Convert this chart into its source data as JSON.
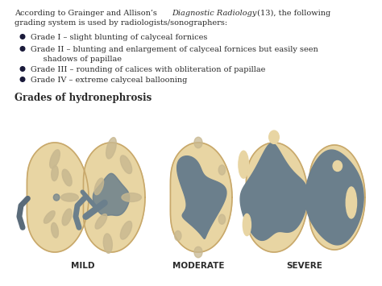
{
  "bg_color": "#ffffff",
  "text_color": "#2a2a2a",
  "kidney_fill": "#e8d5a3",
  "kidney_stroke": "#c8a86b",
  "dark_fill": "#6b7f8c",
  "light_calyces": "#c8b890",
  "hilum_color": "#5a6b7a",
  "title_text": "Grades of hydronephrosis",
  "header_text1": "According to Grainger and Allison’s ",
  "header_italic": "Diagnostic Radiology",
  "header_text2": " (13), the following",
  "header_line2": "grading system is used by radiologists/sonographers:",
  "bullet_color": "#1a1a3a",
  "bullets": [
    "Grade I – slight blunting of calyceal fornices",
    "Grade II – blunting and enlargement of calyceal fornices but easily seen\n     shadows of papillae",
    "Grade III – rounding of calices with obliteration of papillae",
    "Grade IV – extreme calyceal ballooning"
  ],
  "labels": [
    "MILD",
    "MODERATE",
    "SEVERE"
  ],
  "figsize": [
    4.74,
    3.55
  ],
  "dpi": 100
}
